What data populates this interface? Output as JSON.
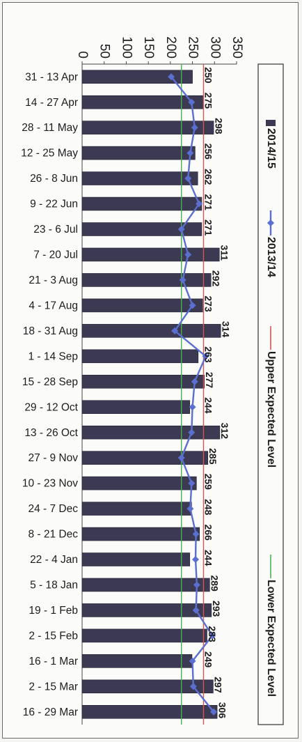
{
  "chart_data": {
    "type": "bar",
    "orientation": "rotated",
    "categories": [
      "31 - 13 Apr",
      "14 - 27 Apr",
      "28 - 11 May",
      "12 - 25 May",
      "26 - 8 Jun",
      "9 - 22 Jun",
      "23 - 6 Jul",
      "7 - 20 Jul",
      "21 - 3 Aug",
      "4 - 17 Aug",
      "18 - 31 Aug",
      "1 - 14 Sep",
      "15 - 28 Sep",
      "29 - 12 Oct",
      "13 - 26 Oct",
      "27 - 9 Nov",
      "10 - 23 Nov",
      "24 - 7 Dec",
      "8 - 21 Dec",
      "22 - 4 Jan",
      "5 - 18 Jan",
      "19 - 1 Feb",
      "2 - 15 Feb",
      "16 - 1 Mar",
      "2 - 15 Mar",
      "16 - 29 Mar"
    ],
    "series": [
      {
        "name": "2014/15",
        "type": "bar",
        "color": "#3b3a52",
        "values": [
          250,
          275,
          298,
          256,
          262,
          271,
          271,
          311,
          292,
          273,
          314,
          263,
          277,
          244,
          312,
          285,
          259,
          248,
          266,
          244,
          289,
          293,
          283,
          249,
          297,
          306
        ],
        "labels": [
          "250",
          "275",
          "298",
          "256",
          "262",
          "271",
          "271",
          "311",
          "292",
          "273",
          "314",
          "263",
          "277",
          "244",
          "312",
          "285",
          "259",
          "248",
          "266",
          "244",
          "289",
          "293",
          "283",
          "249",
          "297",
          "306"
        ]
      },
      {
        "name": "2013/14",
        "type": "line",
        "color": "#5a6fd0",
        "values": [
          202,
          248,
          255,
          245,
          240,
          265,
          225,
          240,
          228,
          250,
          210,
          280,
          255,
          250,
          248,
          225,
          248,
          245,
          258,
          257,
          260,
          258,
          295,
          250,
          252,
          298
        ]
      },
      {
        "name": "Upper Expected Level",
        "type": "hline",
        "color": "#d9534f",
        "value": 275
      },
      {
        "name": "Lower Expected Level",
        "type": "hline",
        "color": "#4caf50",
        "value": 225
      }
    ],
    "yticks": [
      "0",
      "50",
      "100",
      "150",
      "200",
      "250",
      "300",
      "350"
    ],
    "ylim": [
      0,
      350
    ],
    "legend_position": "right",
    "grid": false
  }
}
